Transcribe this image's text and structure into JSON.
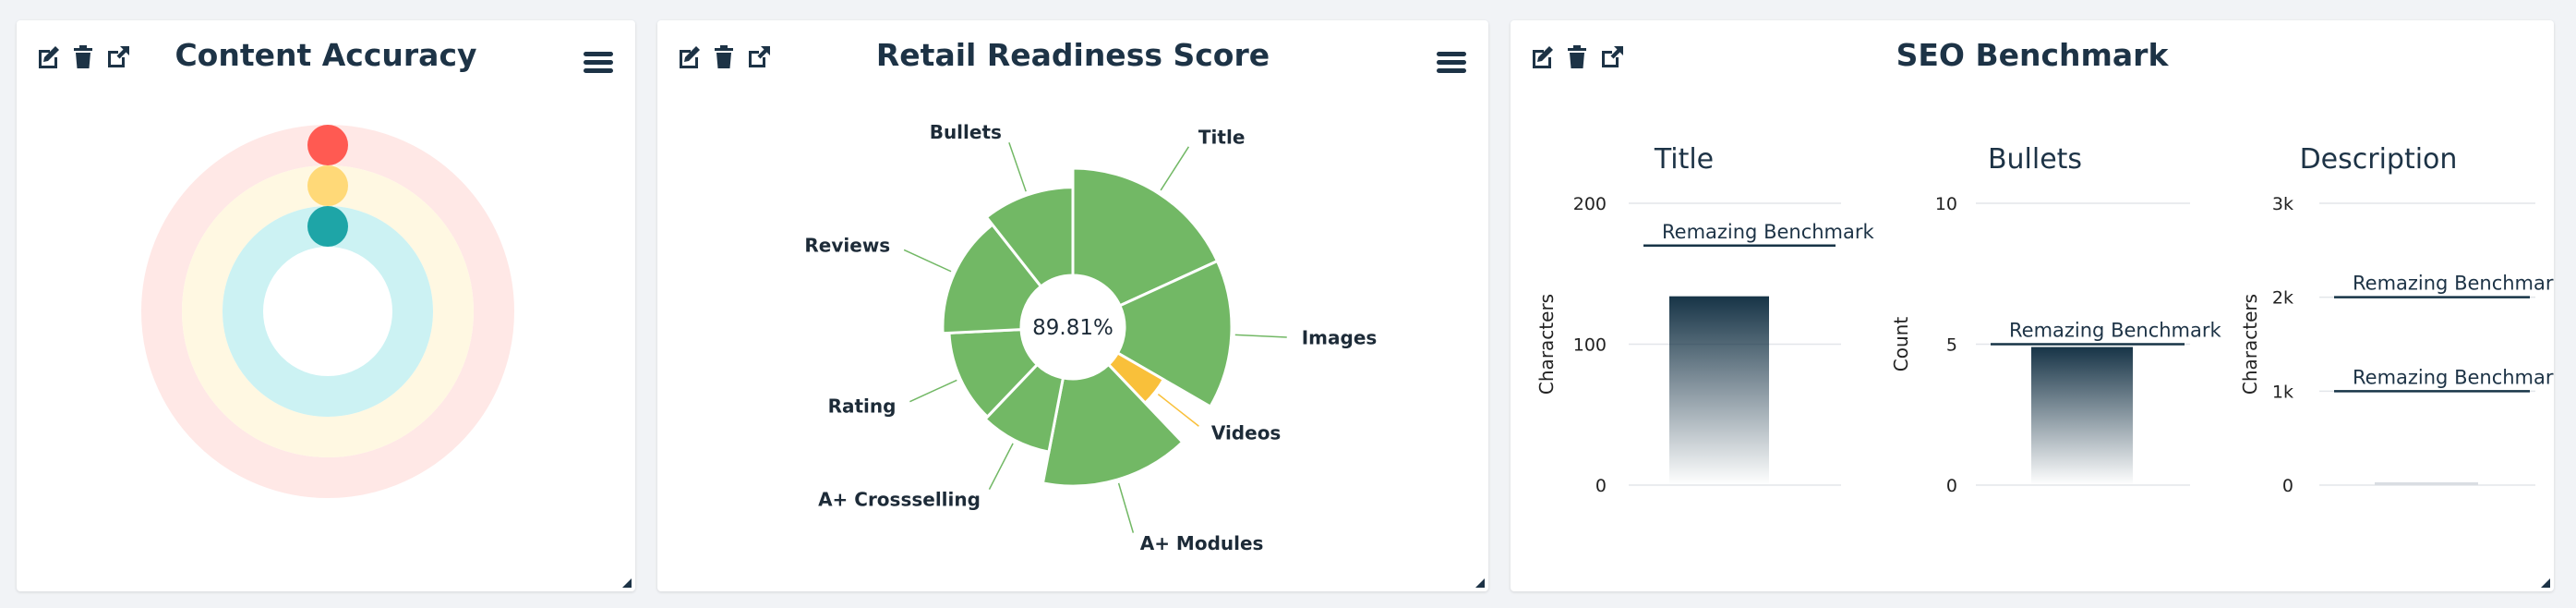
{
  "panels": [
    {
      "title": "Content Accuracy"
    },
    {
      "title": "Retail Readiness Score"
    },
    {
      "title": "SEO Benchmark"
    }
  ],
  "icons": {
    "edit": "pencil-square-icon",
    "delete": "trash-icon",
    "open": "external-link-icon",
    "menu": "hamburger-menu-icon",
    "resize": "resize-handle-icon"
  },
  "colors": {
    "title": "#1d3346",
    "red": "#ff5a52",
    "yellow": "#ffd978",
    "teal": "#1ea5a7",
    "green": "#72b865",
    "orange": "#f9c03a",
    "navy": "#173447"
  },
  "chart_data": [
    {
      "type": "radial-bar",
      "series": [
        {
          "value": 0,
          "color": "#ff5a52",
          "track": "#ffe8e6"
        },
        {
          "value": 0,
          "color": "#ffd978",
          "track": "#fff8e2"
        },
        {
          "value": 0,
          "color": "#1ea5a7",
          "track": "#ccf2f3"
        }
      ]
    },
    {
      "type": "variable-radius-pie",
      "center_label": "89.81%",
      "slices": [
        {
          "label": "Title",
          "value": 60,
          "radius": 1.0
        },
        {
          "label": "Images",
          "value": 50,
          "radius": 1.0
        },
        {
          "label": "Videos",
          "value": 15,
          "radius": 0.66
        },
        {
          "label": "A+ Modules",
          "value": 50,
          "radius": 1.0
        },
        {
          "label": "A+ Crossselling",
          "value": 30,
          "radius": 0.8
        },
        {
          "label": "Rating",
          "value": 40,
          "radius": 0.78
        },
        {
          "label": "Reviews",
          "value": 50,
          "radius": 0.82
        },
        {
          "label": "Bullets",
          "value": 35,
          "radius": 0.88
        }
      ]
    },
    {
      "type": "bar",
      "title": "Title",
      "ylabel": "Characters",
      "ticks": [
        "0",
        "100",
        "200"
      ],
      "ylim": [
        0,
        200
      ],
      "values": [
        134
      ],
      "benchmark": {
        "label": "Remazing Benchmark",
        "value": 170
      }
    },
    {
      "type": "bar",
      "title": "Bullets",
      "ylabel": "Count",
      "ticks": [
        "0",
        "5",
        "10"
      ],
      "ylim": [
        0,
        10
      ],
      "values": [
        4.9
      ],
      "benchmark": {
        "label": "Remazing Benchmark",
        "value": 5
      }
    },
    {
      "type": "bar",
      "title": "Description",
      "ylabel": "Characters",
      "ticks": [
        "0",
        "1k",
        "2k",
        "3k"
      ],
      "ylim": [
        0,
        3000
      ],
      "values": [
        30
      ],
      "benchmarks": [
        {
          "label": "Remazing Benchmark",
          "value": 2000
        },
        {
          "label": "Remazing Benchmark",
          "value": 1000
        }
      ]
    }
  ]
}
